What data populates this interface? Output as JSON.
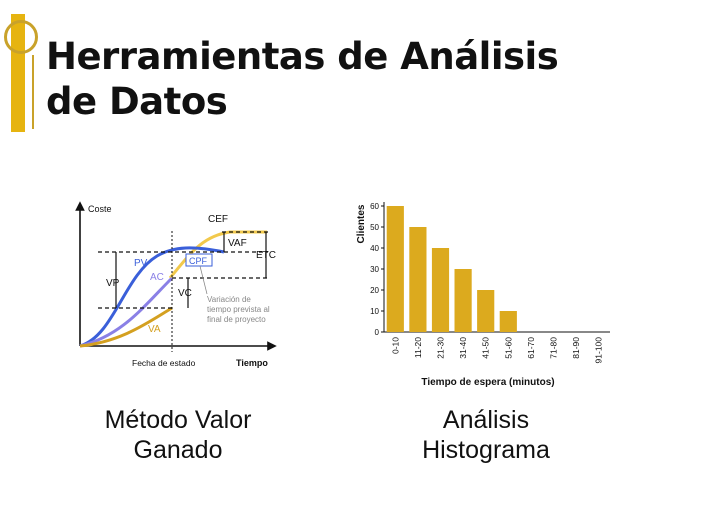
{
  "slide": {
    "title_line1": "Herramientas de Análisis",
    "title_line2": "de Datos",
    "accent_color": "#e6b410"
  },
  "evm_diagram": {
    "y_axis_label": "Coste",
    "x_axis_label": "Tiempo",
    "status_date_label": "Fecha de estado",
    "labels": {
      "cef": "CEF",
      "vaf": "VAF",
      "etc": "ETC",
      "pv": "PV",
      "ac": "AC",
      "cpf": "CPF",
      "vp": "VP",
      "vc": "VC",
      "va": "VA"
    },
    "note": [
      "Variación de",
      "tiempo prevista al",
      "final de proyecto"
    ],
    "colors": {
      "pv": "#3a5fd9",
      "ac": "#8a80e6",
      "va": "#d4a020",
      "cef": "#f2c94c"
    }
  },
  "chart_data": {
    "type": "bar",
    "categories": [
      "0-10",
      "11-20",
      "21-30",
      "31-40",
      "41-50",
      "51-60",
      "61-70",
      "71-80",
      "81-90",
      "91-100"
    ],
    "values": [
      60,
      50,
      40,
      30,
      20,
      10,
      0,
      0,
      0,
      0
    ],
    "xlabel": "Tiempo de espera (minutos)",
    "ylabel": "Clientes",
    "ylim": [
      0,
      60
    ],
    "yticks": [
      0,
      10,
      20,
      30,
      40,
      50,
      60
    ],
    "bar_color": "#dcaa1e",
    "grid": false
  },
  "captions": {
    "evm_line1": "Método Valor",
    "evm_line2": "Ganado",
    "hist_line1": "Análisis",
    "hist_line2": "Histograma"
  }
}
